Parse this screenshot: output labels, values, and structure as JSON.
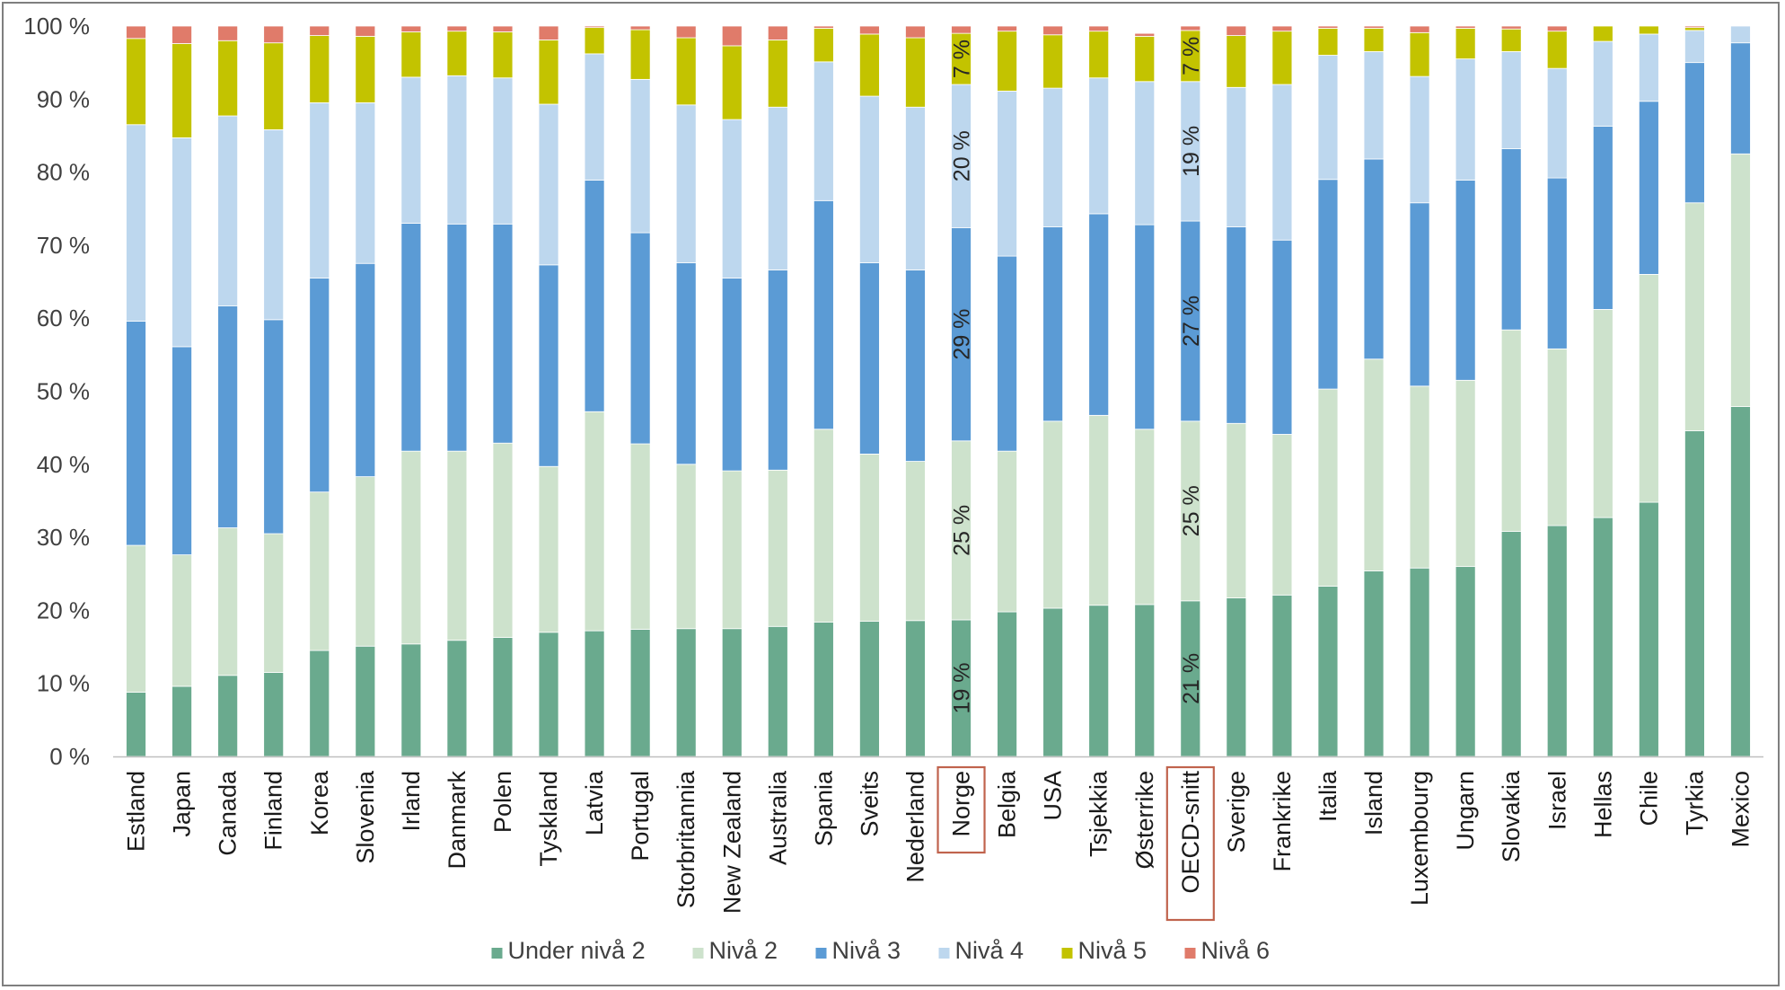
{
  "chart_data": {
    "type": "bar",
    "stacked": true,
    "orientation": "vertical",
    "ylim": [
      0,
      100
    ],
    "yticks": [
      "0 %",
      "10 %",
      "20 %",
      "30 %",
      "40 %",
      "50 %",
      "60 %",
      "70 %",
      "80 %",
      "90 %",
      "100 %"
    ],
    "categories": [
      "Estland",
      "Japan",
      "Canada",
      "Finland",
      "Korea",
      "Slovenia",
      "Irland",
      "Danmark",
      "Polen",
      "Tyskland",
      "Latvia",
      "Portugal",
      "Storbritannia",
      "New Zealand",
      "Australia",
      "Spania",
      "Sveits",
      "Nederland",
      "Norge",
      "Belgia",
      "USA",
      "Tsjekkia",
      "Østerrike",
      "OECD-snitt",
      "Sverige",
      "Frankrike",
      "Italia",
      "Island",
      "Luxembourg",
      "Ungarn",
      "Slovakia",
      "Israel",
      "Hellas",
      "Chile",
      "Tyrkia",
      "Mexico"
    ],
    "highlighted_categories": [
      "Norge",
      "OECD-snitt"
    ],
    "series": [
      {
        "name": "Under nivå 2",
        "color": "#6aaa8e",
        "values": [
          8.8,
          9.6,
          11.1,
          11.5,
          14.5,
          15.1,
          15.4,
          15.9,
          16.3,
          17.0,
          17.2,
          17.4,
          17.5,
          17.5,
          17.8,
          18.4,
          18.5,
          18.6,
          18.7,
          19.8,
          20.3,
          20.7,
          20.8,
          21.3,
          21.7,
          22.1,
          23.3,
          25.4,
          25.8,
          26.0,
          30.8,
          31.6,
          32.7,
          34.8,
          44.6,
          47.9
        ]
      },
      {
        "name": "Nivå 2",
        "color": "#cde2cc",
        "values": [
          20.1,
          18.0,
          20.2,
          19.0,
          21.7,
          23.2,
          26.4,
          25.9,
          26.6,
          22.7,
          30.0,
          25.4,
          22.5,
          21.6,
          21.4,
          26.4,
          22.9,
          21.8,
          24.5,
          22.0,
          25.6,
          26.0,
          24.0,
          24.6,
          23.9,
          22.0,
          27.0,
          29.0,
          24.9,
          25.5,
          27.6,
          24.2,
          28.5,
          31.2,
          31.2,
          34.6
        ]
      },
      {
        "name": "Nivå 3",
        "color": "#5b9bd5",
        "values": [
          30.7,
          28.5,
          30.4,
          29.3,
          29.3,
          29.2,
          31.2,
          31.1,
          30.0,
          27.6,
          31.7,
          28.9,
          27.6,
          26.4,
          27.4,
          31.3,
          26.2,
          26.2,
          29.2,
          26.7,
          26.6,
          27.6,
          28.0,
          27.4,
          26.9,
          26.6,
          28.7,
          27.4,
          25.1,
          27.4,
          24.8,
          23.4,
          25.1,
          23.7,
          19.2,
          15.2
        ]
      },
      {
        "name": "Nivå 4",
        "color": "#bdd7ee",
        "values": [
          26.9,
          28.6,
          26.0,
          26.0,
          24.0,
          22.0,
          20.0,
          20.3,
          20.0,
          22.0,
          17.3,
          21.0,
          21.6,
          21.7,
          22.3,
          19.0,
          22.8,
          22.3,
          19.6,
          22.6,
          19.0,
          18.6,
          19.6,
          19.1,
          19.1,
          21.3,
          17.0,
          14.7,
          17.3,
          16.6,
          13.3,
          15.0,
          11.6,
          9.2,
          4.4,
          2.3
        ]
      },
      {
        "name": "Nivå 5",
        "color": "#c3c300",
        "values": [
          11.8,
          12.9,
          10.3,
          11.9,
          9.2,
          9.1,
          6.2,
          6.1,
          6.3,
          8.8,
          3.6,
          6.8,
          9.2,
          10.1,
          9.2,
          4.6,
          8.5,
          9.5,
          7.0,
          8.2,
          7.3,
          6.4,
          6.2,
          7.0,
          7.1,
          7.3,
          3.7,
          3.2,
          6.0,
          4.2,
          3.1,
          5.1,
          2.1,
          1.1,
          0.4,
          0.0
        ]
      },
      {
        "name": "Nivå 6",
        "color": "#e07b6a",
        "values": [
          1.7,
          2.4,
          2.0,
          2.3,
          1.3,
          1.4,
          0.8,
          0.7,
          0.8,
          1.9,
          0.2,
          0.5,
          1.6,
          2.7,
          1.9,
          0.3,
          1.1,
          1.6,
          1.0,
          0.7,
          1.2,
          0.7,
          0.4,
          0.6,
          1.3,
          0.7,
          0.3,
          0.3,
          0.9,
          0.3,
          0.4,
          0.7,
          0.0,
          0.0,
          0.2,
          0.0
        ]
      }
    ],
    "segment_labels": [
      {
        "category": "Norge",
        "series": "Under nivå 2",
        "text": "19 %"
      },
      {
        "category": "Norge",
        "series": "Nivå 2",
        "text": "25 %"
      },
      {
        "category": "Norge",
        "series": "Nivå 3",
        "text": "29 %"
      },
      {
        "category": "Norge",
        "series": "Nivå 4",
        "text": "20 %"
      },
      {
        "category": "Norge",
        "series": "Nivå 5",
        "text": "7 %"
      },
      {
        "category": "OECD-snitt",
        "series": "Under nivå 2",
        "text": "21 %"
      },
      {
        "category": "OECD-snitt",
        "series": "Nivå 2",
        "text": "25 %"
      },
      {
        "category": "OECD-snitt",
        "series": "Nivå 3",
        "text": "27 %"
      },
      {
        "category": "OECD-snitt",
        "series": "Nivå 4",
        "text": "19 %"
      },
      {
        "category": "OECD-snitt",
        "series": "Nivå 5",
        "text": "7 %"
      }
    ],
    "grid": false,
    "legend_position": "bottom-center"
  }
}
